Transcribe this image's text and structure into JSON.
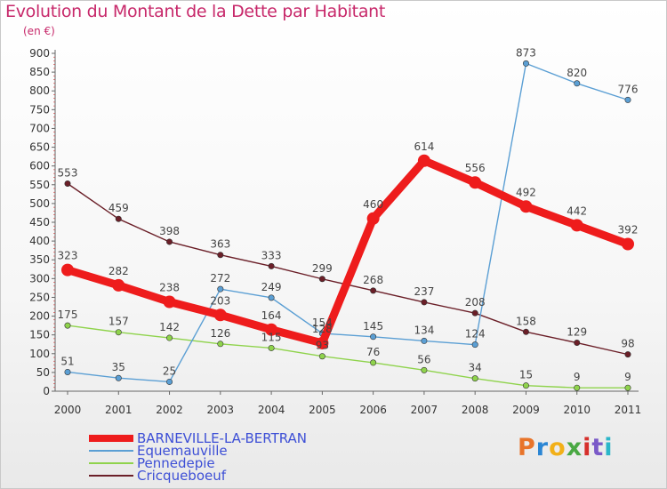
{
  "title": "Evolution du Montant de la Dette par Habitant",
  "subtitle": "(en €)",
  "logo": {
    "text": "Proxiti",
    "colors": [
      "#e8742a",
      "#2b86d4",
      "#f2b018",
      "#49a843",
      "#d6302c",
      "#7a5ac8",
      "#2bb6c9"
    ]
  },
  "chart_data": {
    "type": "line",
    "title": "Evolution du Montant de la Dette par Habitant",
    "ylabel": "(en €)",
    "x": [
      "2000",
      "2001",
      "2002",
      "2003",
      "2004",
      "2005",
      "2006",
      "2007",
      "2008",
      "2009",
      "2010",
      "2011"
    ],
    "yticks": [
      "0",
      "50",
      "100",
      "150",
      "200",
      "250",
      "300",
      "350",
      "400",
      "450",
      "500",
      "550",
      "600",
      "650",
      "700",
      "750",
      "800",
      "850",
      "900"
    ],
    "ylim": [
      0,
      900
    ],
    "grid": false,
    "legend_position": "bottom-left",
    "series": [
      {
        "name": "Cricqueboeuf",
        "color": "#6b1f28",
        "emphasis": false,
        "values": [
          553,
          459,
          398,
          363,
          333,
          299,
          268,
          237,
          208,
          158,
          129,
          98
        ],
        "labels": [
          "553",
          "459",
          "398",
          "363",
          "333",
          "299",
          "268",
          "237",
          "208",
          "158",
          "129",
          "98"
        ]
      },
      {
        "name": "Pennedepie",
        "color": "#8fd34c",
        "emphasis": false,
        "values": [
          175,
          157,
          142,
          126,
          115,
          93,
          76,
          56,
          34,
          15,
          9,
          9
        ],
        "labels": [
          "175",
          "157",
          "142",
          "126",
          "115",
          "93",
          "76",
          "56",
          "34",
          "15",
          "9",
          "9"
        ]
      },
      {
        "name": "Equemauville",
        "color": "#5b9fd4",
        "emphasis": false,
        "values": [
          51,
          35,
          25,
          272,
          249,
          154,
          145,
          134,
          124,
          873,
          820,
          776
        ],
        "labels": [
          "51",
          "35",
          "25",
          "272",
          "249",
          "154",
          "145",
          "134",
          "124",
          "873",
          "820",
          "776"
        ]
      },
      {
        "name": "BARNEVILLE-LA-BERTRAN",
        "color": "#ee1c1c",
        "emphasis": true,
        "values": [
          323,
          282,
          238,
          203,
          164,
          128,
          460,
          614,
          556,
          492,
          442,
          392
        ],
        "labels": [
          "323",
          "282",
          "238",
          "203",
          "164",
          "128",
          "460",
          "614",
          "556",
          "492",
          "442",
          "392"
        ]
      }
    ],
    "legend": [
      "BARNEVILLE-LA-BERTRAN",
      "Equemauville",
      "Pennedepie",
      "Cricqueboeuf"
    ]
  }
}
